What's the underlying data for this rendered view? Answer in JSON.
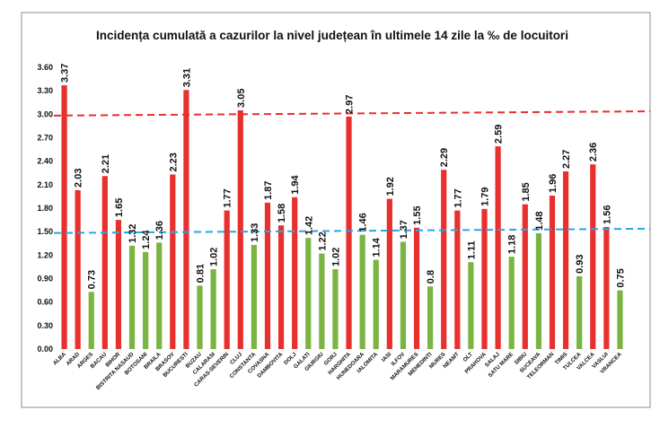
{
  "chart_data": {
    "type": "bar",
    "title": "Incidența cumulată a cazurilor la nivel județean în ultimele 14 zile la ‰ de locuitori",
    "xlabel": "",
    "ylabel": "",
    "ylim": [
      0,
      3.6
    ],
    "yticks": [
      "0.00",
      "0.30",
      "0.60",
      "0.90",
      "1.20",
      "1.50",
      "1.80",
      "2.10",
      "2.40",
      "2.70",
      "3.00",
      "3.30",
      "3.60"
    ],
    "grid": false,
    "legend": "none",
    "colors": {
      "above": "#E8302E",
      "below": "#7AB441",
      "line_red": "#E8302E",
      "line_blue": "#2AA6DF"
    },
    "reference_lines": [
      {
        "value": 3.0,
        "color": "#E8302E",
        "style": "dashed"
      },
      {
        "value": 1.5,
        "color": "#2AA6DF",
        "style": "dashed"
      }
    ],
    "categories": [
      "ALBA",
      "ARAD",
      "ARGES",
      "BACAU",
      "BIHOR",
      "BISTRITA NASAUD",
      "BOTOSANI",
      "BRAILA",
      "BRASOV",
      "BUCURESTI",
      "BUZAU",
      "CALARASI",
      "CARAS-SEVERIN",
      "CLUJ",
      "CONSTANTA",
      "COVASNA",
      "DAMBOVITA",
      "DOLJ",
      "GALATI",
      "GIURGIU",
      "GORJ",
      "HARGHITA",
      "HUNEDOARA",
      "IALOMITA",
      "IASI",
      "ILFOV",
      "MARAMURES",
      "MEHEDINTI",
      "MURES",
      "NEAMT",
      "OLT",
      "PRAHOVA",
      "SALAJ",
      "SATU MARE",
      "SIBIU",
      "SUCEAVA",
      "TELEORMAN",
      "TIMIS",
      "TULCEA",
      "VALCEA",
      "VASLUI",
      "VRANCEA"
    ],
    "values": [
      3.37,
      2.03,
      0.73,
      2.21,
      1.65,
      1.32,
      1.24,
      1.36,
      2.23,
      3.31,
      0.81,
      1.02,
      1.77,
      3.05,
      1.33,
      1.87,
      1.58,
      1.94,
      1.42,
      1.22,
      1.02,
      2.97,
      1.46,
      1.14,
      1.92,
      1.37,
      1.55,
      0.8,
      2.29,
      1.77,
      1.11,
      1.79,
      2.59,
      1.18,
      1.85,
      1.48,
      1.96,
      2.27,
      0.93,
      2.36,
      1.56,
      0.75
    ],
    "value_labels": [
      "3.37",
      "2.03",
      "0.73",
      "2.21",
      "1.65",
      "1.32",
      "1.24",
      "1.36",
      "2.23",
      "3.31",
      "0.81",
      "1.02",
      "1.77",
      "3.05",
      "1.33",
      "1.87",
      "1.58",
      "1.94",
      "1.42",
      "1.22",
      "1.02",
      "2.97",
      "1.46",
      "1.14",
      "1.92",
      "1.37",
      "1.55",
      "0.8",
      "2.29",
      "1.77",
      "1.11",
      "1.79",
      "2.59",
      "1.18",
      "1.85",
      "1.48",
      "1.96",
      "2.27",
      "0.93",
      "2.36",
      "1.56",
      "0.75"
    ]
  }
}
